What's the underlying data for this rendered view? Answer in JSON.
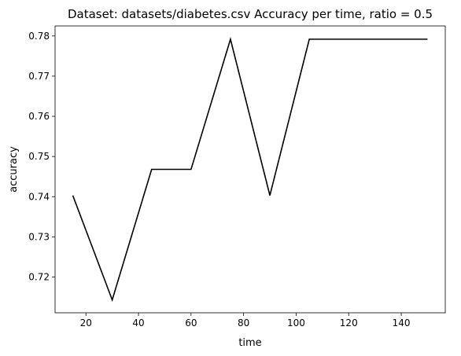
{
  "chart_data": {
    "type": "line",
    "title": "Dataset: datasets/diabetes.csv Accuracy per time, ratio = 0.5",
    "xlabel": "time",
    "ylabel": "accuracy",
    "x": [
      15,
      30,
      45,
      60,
      75,
      90,
      105,
      120,
      135,
      150
    ],
    "series": [
      {
        "values": [
          0.7403,
          0.7143,
          0.7468,
          0.7468,
          0.7792,
          0.7403,
          0.7792,
          0.7792,
          0.7792,
          0.7792
        ]
      }
    ],
    "xlim": [
      8.25,
      156.75
    ],
    "ylim": [
      0.7111,
      0.7825
    ],
    "xticks": [
      20,
      40,
      60,
      80,
      100,
      120,
      140
    ],
    "yticks": [
      0.72,
      0.73,
      0.74,
      0.75,
      0.76,
      0.77,
      0.78
    ],
    "grid": false,
    "line_color": "#000000"
  }
}
